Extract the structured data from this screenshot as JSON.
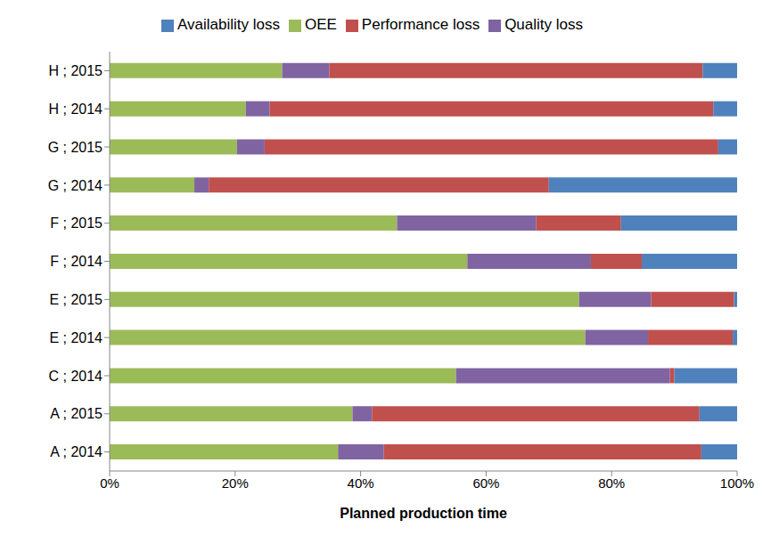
{
  "chart_data": {
    "type": "bar",
    "orientation": "horizontal",
    "stacked": true,
    "grid": false,
    "legend": "top",
    "x_label": "Planned production time",
    "categories": [
      "A ; 2014",
      "A ; 2015",
      "C ; 2014",
      "E ; 2014",
      "E ; 2015",
      "F ; 2014",
      "F ; 2015",
      "G ; 2014",
      "G ; 2015",
      "H ; 2014",
      "H ; 2015"
    ],
    "series": [
      {
        "name": "OEE",
        "color": "#9bbb59",
        "values": [
          36.4,
          38.7,
          55.2,
          75.8,
          74.8,
          57,
          45.8,
          13.5,
          20.3,
          21.7,
          27.5
        ]
      },
      {
        "name": "Quality loss",
        "color": "#8064a2",
        "values": [
          7.3,
          3.1,
          34.1,
          10.0,
          11.5,
          19.7,
          22.2,
          2.3,
          4.4,
          3.8,
          7.5
        ]
      },
      {
        "name": "Performance loss",
        "color": "#c0504d",
        "values": [
          50.6,
          52.2,
          0.7,
          13.5,
          13.2,
          8.1,
          13.5,
          54.2,
          72.3,
          70.7,
          59.5
        ]
      },
      {
        "name": "Availability loss",
        "color": "#4f81bd",
        "values": [
          5.7,
          6,
          10,
          0.7,
          0.5,
          15.2,
          18.5,
          30,
          3.0,
          3.8,
          5.5
        ]
      }
    ],
    "xlim": [
      0,
      100
    ],
    "xticks": [
      {
        "value": 0,
        "label": "0%"
      },
      {
        "value": 20,
        "label": "20%"
      },
      {
        "value": 40,
        "label": "40%"
      },
      {
        "value": 60,
        "label": "60%"
      },
      {
        "value": 80,
        "label": "80%"
      },
      {
        "value": 100,
        "label": "100%"
      }
    ]
  }
}
